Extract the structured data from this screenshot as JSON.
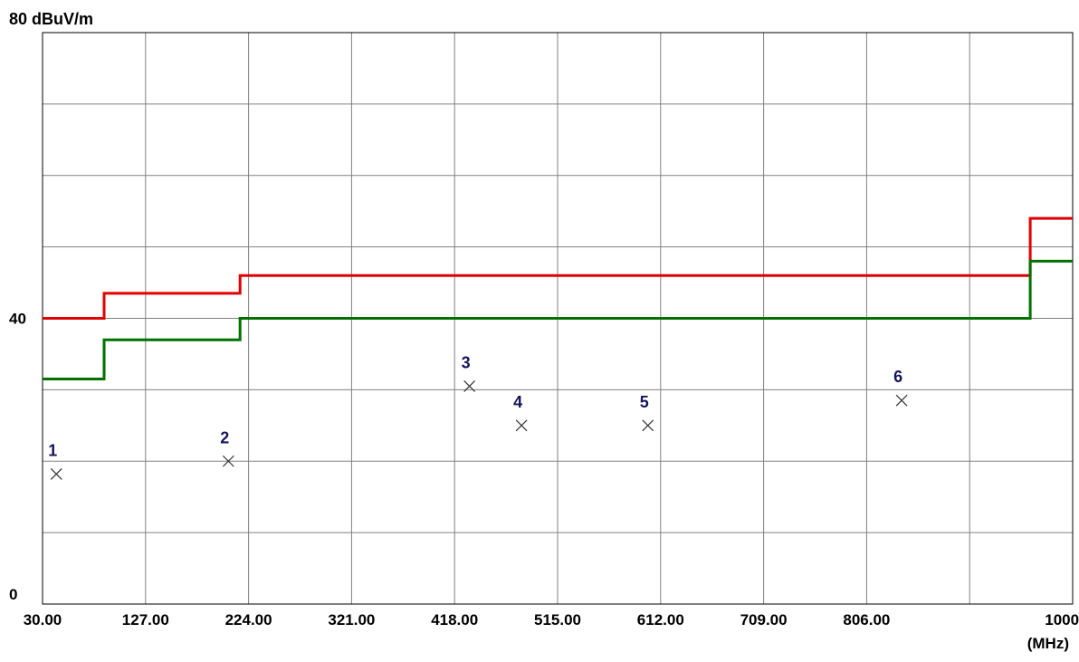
{
  "chart_data": {
    "type": "line",
    "ylabel": "80 dBuV/m",
    "xunit": "(MHz)",
    "xlim": [
      30,
      1000
    ],
    "ylim": [
      0,
      80
    ],
    "x_tick_labels": [
      {
        "value": 30,
        "label": "30.00"
      },
      {
        "value": 127,
        "label": "127.00"
      },
      {
        "value": 224,
        "label": "224.00"
      },
      {
        "value": 321,
        "label": "321.00"
      },
      {
        "value": 418,
        "label": "418.00"
      },
      {
        "value": 515,
        "label": "515.00"
      },
      {
        "value": 612,
        "label": "612.00"
      },
      {
        "value": 709,
        "label": "709.00"
      },
      {
        "value": 806,
        "label": "806.00"
      },
      {
        "value": 1000,
        "label": "1000.00"
      }
    ],
    "y_tick_labels": [
      {
        "value": 40,
        "label": "40"
      },
      {
        "value": 0,
        "label": "0"
      }
    ],
    "grid": true,
    "series": [
      {
        "color": "#e00000",
        "x": [
          30,
          88,
          88,
          216,
          216,
          960,
          960,
          1000
        ],
        "y": [
          40,
          40,
          43.5,
          43.5,
          46,
          46,
          54,
          54
        ]
      },
      {
        "color": "#007000",
        "x": [
          30,
          88,
          88,
          216,
          216,
          960,
          960,
          1000
        ],
        "y": [
          31.5,
          31.5,
          37,
          37,
          40,
          40,
          48,
          48
        ]
      }
    ],
    "markers": [
      {
        "label": "1",
        "x": 43,
        "y": 18.2
      },
      {
        "label": "2",
        "x": 205,
        "y": 20
      },
      {
        "label": "3",
        "x": 432,
        "y": 30.5
      },
      {
        "label": "4",
        "x": 481,
        "y": 25
      },
      {
        "label": "5",
        "x": 600,
        "y": 25
      },
      {
        "label": "6",
        "x": 839,
        "y": 28.5
      }
    ]
  }
}
